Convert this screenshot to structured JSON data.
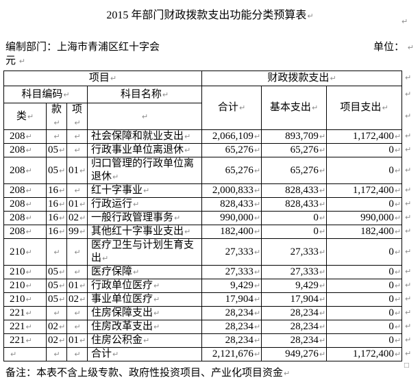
{
  "page": {
    "title": "2015 年部门财政拨款支出功能分类预算表",
    "prepared_by": "编制部门：上海市青浦区红十字会",
    "unit_label": "单位：",
    "unit_value": "元",
    "footnote": "备注：本表不含上级专款、政府性投资项目、产业化项目资金"
  },
  "icons": {
    "paragraph_mark": "↵",
    "end_of_table_mark": "□"
  },
  "colors": {
    "text": "#000000",
    "border": "#000000",
    "paragraph_mark": "#8c8c8c",
    "background": "#ffffff"
  },
  "table": {
    "header": {
      "project_group": "项目",
      "fiscal_group": "财政拨款支出",
      "subject_code": "科目编码",
      "subject_name": "科目名称",
      "total": "合计",
      "basic_expenditure": "基本支出",
      "project_expenditure": "项目支出",
      "cls": "类",
      "section": "款",
      "item": "项"
    },
    "rows": [
      {
        "cls": "208",
        "sec": "",
        "item": "",
        "name": "社会保障和就业支出",
        "total": "2,066,109",
        "basic": "893,709",
        "project": "1,172,400"
      },
      {
        "cls": "208",
        "sec": "05",
        "item": "",
        "name": "行政事业单位离退休",
        "total": "65,276",
        "basic": "65,276",
        "project": "0"
      },
      {
        "cls": "208",
        "sec": "05",
        "item": "01",
        "name": "归口管理的行政单位离退休",
        "total": "65,276",
        "basic": "65,276",
        "project": "0"
      },
      {
        "cls": "208",
        "sec": "16",
        "item": "",
        "name": "红十字事业",
        "total": "2,000,833",
        "basic": "828,433",
        "project": "1,172,400"
      },
      {
        "cls": "208",
        "sec": "16",
        "item": "01",
        "name": "行政运行",
        "total": "828,433",
        "basic": "828,433",
        "project": "0"
      },
      {
        "cls": "208",
        "sec": "16",
        "item": "02",
        "name": "一般行政管理事务",
        "total": "990,000",
        "basic": "0",
        "project": "990,000"
      },
      {
        "cls": "208",
        "sec": "16",
        "item": "99",
        "name": "其他红十字事业支出",
        "total": "182,400",
        "basic": "0",
        "project": "182,400"
      },
      {
        "cls": "210",
        "sec": "",
        "item": "",
        "name": "医疗卫生与计划生育支出",
        "total": "27,333",
        "basic": "27,333",
        "project": "0"
      },
      {
        "cls": "210",
        "sec": "05",
        "item": "",
        "name": "医疗保障",
        "total": "27,333",
        "basic": "27,333",
        "project": "0"
      },
      {
        "cls": "210",
        "sec": "05",
        "item": "01",
        "name": "行政单位医疗",
        "total": "9,429",
        "basic": "9,429",
        "project": "0"
      },
      {
        "cls": "210",
        "sec": "05",
        "item": "02",
        "name": "事业单位医疗",
        "total": "17,904",
        "basic": "17,904",
        "project": "0"
      },
      {
        "cls": "221",
        "sec": "",
        "item": "",
        "name": "住房保障支出",
        "total": "28,234",
        "basic": "28,234",
        "project": "0"
      },
      {
        "cls": "221",
        "sec": "02",
        "item": "",
        "name": "住房改革支出",
        "total": "28,234",
        "basic": "28,234",
        "project": "0"
      },
      {
        "cls": "221",
        "sec": "02",
        "item": "01",
        "name": "住房公积金",
        "total": "28,234",
        "basic": "28,234",
        "project": "0"
      },
      {
        "cls": "",
        "sec": "",
        "item": "",
        "name": "合计",
        "total": "2,121,676",
        "basic": "949,276",
        "project": "1,172,400"
      }
    ]
  }
}
